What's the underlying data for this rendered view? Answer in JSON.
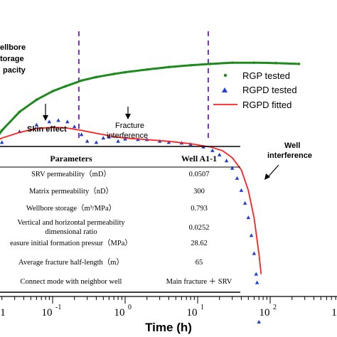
{
  "chart_data": {
    "type": "line",
    "xlabel": "Time (h)",
    "x_scale": "log",
    "xlim": [
      0.01,
      1000
    ],
    "x_ticks": [
      {
        "base": "10",
        "exp": "-1",
        "value": 0.1
      },
      {
        "base": "10",
        "exp": "0",
        "value": 1
      },
      {
        "base": "10",
        "exp": "1",
        "value": 10
      },
      {
        "base": "10",
        "exp": "2",
        "value": 100
      }
    ],
    "y_scale": "log",
    "ylim": [
      0.0008,
      15
    ],
    "legend_position": "right",
    "series": [
      {
        "name": "RGP tested",
        "marker": "dot",
        "color": "#1e8a1e",
        "x": [
          0.012,
          0.02,
          0.035,
          0.06,
          0.1,
          0.15,
          0.25,
          0.4,
          0.7,
          1,
          2,
          4,
          8,
          15,
          30,
          60,
          120,
          250
        ],
        "y": [
          0.35,
          0.75,
          1.4,
          2.1,
          2.8,
          3.3,
          4.0,
          4.5,
          5.0,
          5.3,
          5.8,
          6.3,
          6.7,
          7.0,
          7.3,
          7.3,
          7.2,
          7.0
        ]
      },
      {
        "name": "RGPD tested",
        "marker": "triangle",
        "color": "#1f3fcf",
        "x": [
          0.012,
          0.02,
          0.035,
          0.06,
          0.09,
          0.12,
          0.16,
          0.2,
          0.25,
          0.3,
          0.4,
          0.5,
          0.6,
          0.8,
          1,
          1.5,
          2,
          3,
          4,
          6,
          8,
          12,
          16,
          20,
          25,
          30,
          35,
          40,
          45,
          50,
          55,
          60,
          64,
          66,
          70
        ],
        "y": [
          0.33,
          0.5,
          0.72,
          0.9,
          1.0,
          1.05,
          1.0,
          0.85,
          0.65,
          0.52,
          0.5,
          0.58,
          0.6,
          0.52,
          0.56,
          0.55,
          0.55,
          0.52,
          0.5,
          0.49,
          0.47,
          0.43,
          0.38,
          0.33,
          0.27,
          0.21,
          0.15,
          0.1,
          0.065,
          0.04,
          0.022,
          0.012,
          0.006,
          0.0045,
          0.0012
        ]
      },
      {
        "name": "RGPD fitted",
        "marker": "line",
        "color": "#ff2020",
        "x": [
          0.012,
          0.02,
          0.035,
          0.06,
          0.1,
          0.15,
          0.25,
          0.4,
          0.7,
          1,
          2,
          4,
          8,
          15,
          22,
          30,
          40,
          50,
          60,
          70,
          75
        ],
        "y": [
          0.45,
          0.58,
          0.7,
          0.8,
          0.83,
          0.82,
          0.75,
          0.68,
          0.61,
          0.58,
          0.55,
          0.52,
          0.48,
          0.43,
          0.38,
          0.3,
          0.2,
          0.1,
          0.04,
          0.012,
          0.006
        ]
      }
    ],
    "annotations": [
      {
        "text_lines": [
          "Wellbore",
          "storage",
          "capacity"
        ],
        "shown": [
          "ellbore",
          "torage",
          "pacity"
        ],
        "bold": true
      },
      {
        "text": "Skin effect",
        "bold": false
      },
      {
        "text_lines": [
          "Fracture",
          "interference"
        ],
        "bold": false
      },
      {
        "text_lines": [
          "Well",
          "interference"
        ],
        "bold": true
      }
    ],
    "dividers_x": [
      0.012,
      0.23,
      14
    ],
    "table": {
      "headers": [
        "Parameters",
        "Well A1-1"
      ],
      "rows": [
        [
          "SRV permeability（mD）",
          "0.0507"
        ],
        [
          "Matrix permeability（nD）",
          "300"
        ],
        [
          "Wellbore storage（m³/MPa）",
          "0.793"
        ],
        [
          "Vertical and horizontal permeability|dimensional ratio",
          "0.0252"
        ],
        [
          "easure initial formation pressur（MPa）",
          "28.62"
        ],
        [
          "Average fracture half-length（m）",
          "65"
        ],
        [
          "Connect mode with neighbor well",
          "Main fracture ＋ SRV"
        ]
      ]
    }
  }
}
